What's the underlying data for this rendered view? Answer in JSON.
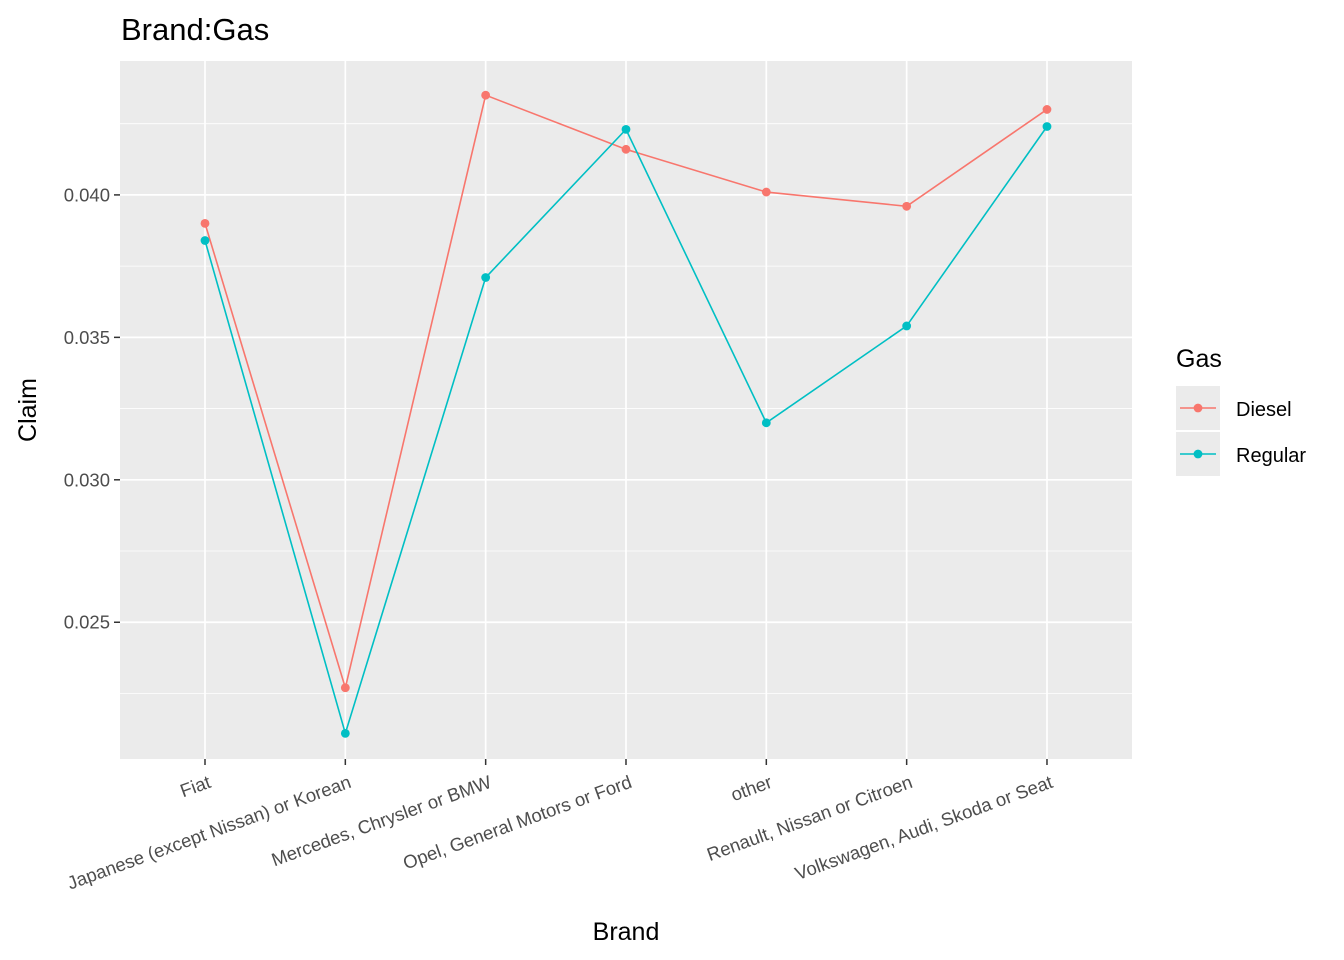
{
  "chart_data": {
    "type": "line",
    "title": "Brand:Gas",
    "xlabel": "Brand",
    "ylabel": "Claim",
    "categories": [
      "Fiat",
      "Japanese (except Nissan) or Korean",
      "Mercedes, Chrysler or BMW",
      "Opel, General Motors or Ford",
      "other",
      "Renault, Nissan or Citroen",
      "Volkswagen, Audi, Skoda or Seat"
    ],
    "ylim": [
      0.0202,
      0.0447
    ],
    "yticks": [
      0.025,
      0.03,
      0.035,
      0.04
    ],
    "ytick_labels": [
      "0.025",
      "0.030",
      "0.035",
      "0.040"
    ],
    "grid": true,
    "legend": {
      "title": "Gas",
      "position": "right"
    },
    "series": [
      {
        "name": "Diesel",
        "color": "#F8766D",
        "values": [
          0.039,
          0.0227,
          0.0435,
          0.0416,
          0.0401,
          0.0396,
          0.043
        ]
      },
      {
        "name": "Regular",
        "color": "#00BFC4",
        "values": [
          0.0384,
          0.0211,
          0.0371,
          0.0423,
          0.032,
          0.0354,
          0.0424
        ]
      }
    ]
  }
}
